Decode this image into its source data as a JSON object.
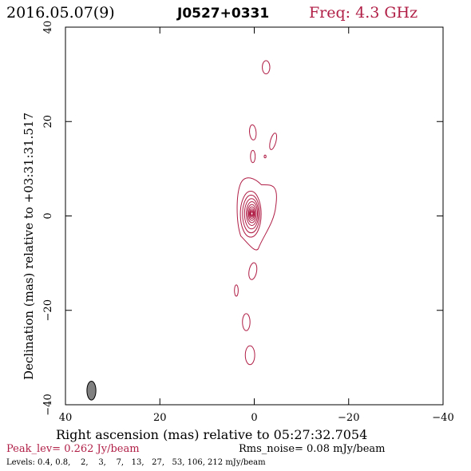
{
  "header": {
    "date": "2016.05.07(9)",
    "source": "J0527+0331",
    "freq": "Freq: 4.3 GHz"
  },
  "footer": {
    "peak": "Peak_lev=  0.262 Jy/beam",
    "rms": "Rms_noise= 0.08 mJy/beam",
    "levels": "Levels: 0.4, 0.8,    2,    3,    7,   13,   27,   53, 106, 212 mJy/beam"
  },
  "colors": {
    "contour": "#b01e46",
    "axes": "#000000",
    "beam_fill": "#808080"
  },
  "chart_data": {
    "type": "contour",
    "xlabel": "Right ascension (mas) relative to 05:27:32.7054",
    "ylabel": "Declination (mas) relative to +03:31:31.517",
    "xlim": [
      40,
      -40
    ],
    "ylim": [
      -40,
      40
    ],
    "x_ticks": [
      40,
      20,
      0,
      -20,
      -40
    ],
    "y_ticks": [
      -40,
      -20,
      0,
      20,
      40
    ],
    "x_tick_labels": [
      "40",
      "20",
      "0",
      "−20",
      "−40"
    ],
    "y_tick_labels": [
      "−40",
      "−20",
      "0",
      "20",
      "40"
    ],
    "levels_mJy_per_beam": [
      0.4,
      0.8,
      2,
      3,
      7,
      13,
      27,
      53,
      106,
      212
    ],
    "peak_Jy_per_beam": 0.262,
    "rms_mJy_per_beam": 0.08,
    "core": {
      "x": 0.5,
      "y": 0.5
    },
    "components": [
      {
        "x": -2.5,
        "y": 31.5,
        "rx": 0.8,
        "ry": 1.4,
        "rot": 0
      },
      {
        "x": 0.3,
        "y": 17.7,
        "rx": 0.7,
        "ry": 1.6,
        "rot": -5
      },
      {
        "x": 0.3,
        "y": 12.6,
        "rx": 0.5,
        "ry": 1.3,
        "rot": 0
      },
      {
        "x": -4.0,
        "y": 15.8,
        "rx": 0.6,
        "ry": 1.8,
        "rot": 15
      },
      {
        "x": -2.3,
        "y": 12.6,
        "rx": 0.2,
        "ry": 0.3,
        "rot": 0
      },
      {
        "x": 0.3,
        "y": -11.7,
        "rx": 0.8,
        "ry": 1.8,
        "rot": 10
      },
      {
        "x": 3.8,
        "y": -15.8,
        "rx": 0.4,
        "ry": 1.2,
        "rot": 0
      },
      {
        "x": 1.7,
        "y": -22.5,
        "rx": 0.8,
        "ry": 1.8,
        "rot": 0
      },
      {
        "x": 0.9,
        "y": -29.5,
        "rx": 1.0,
        "ry": 2.0,
        "rot": 0
      }
    ],
    "beam": {
      "x": 34.5,
      "y": -37.0,
      "major_mas": 4.0,
      "minor_mas": 1.9,
      "pa_deg": 0
    }
  }
}
